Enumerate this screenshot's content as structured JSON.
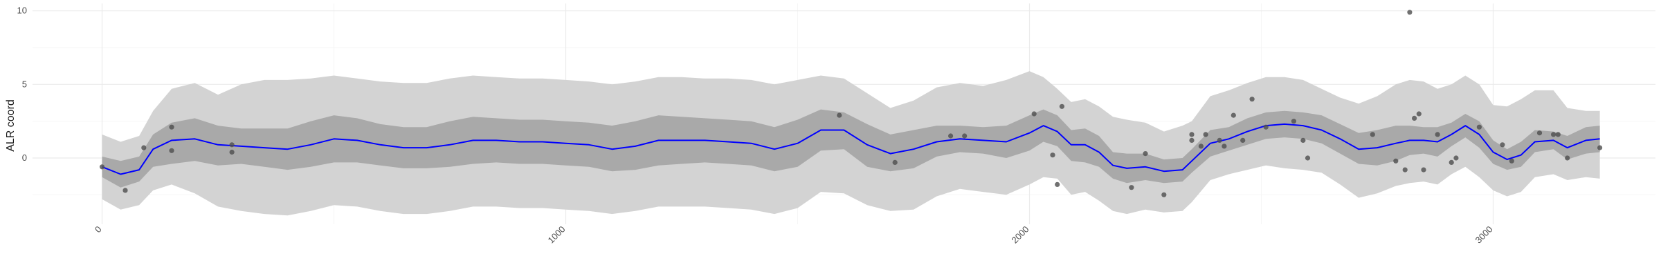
{
  "chart_data": {
    "type": "line",
    "title": "",
    "xlabel": "",
    "ylabel": "ALR coord",
    "xlim": [
      -150,
      3350
    ],
    "ylim": [
      -4.5,
      10.5
    ],
    "grid": true,
    "legend": "none",
    "x_ticks": [
      0,
      1000,
      2000,
      3000
    ],
    "y_ticks": [
      0,
      5,
      10
    ],
    "colors": {
      "line": "#0000ff",
      "inner_band": "#a9a9a9",
      "outer_band": "#d3d3d3",
      "points": "#4d4d4d",
      "grid_major": "#ebebeb",
      "grid_minor": "#f5f5f5"
    },
    "mean_curve": {
      "x": [
        0,
        40,
        80,
        110,
        150,
        200,
        250,
        300,
        350,
        400,
        450,
        500,
        550,
        600,
        650,
        700,
        750,
        800,
        850,
        900,
        950,
        1000,
        1050,
        1100,
        1150,
        1200,
        1250,
        1300,
        1350,
        1400,
        1450,
        1500,
        1550,
        1600,
        1650,
        1700,
        1750,
        1800,
        1850,
        1900,
        1950,
        2000,
        2030,
        2060,
        2090,
        2120,
        2150,
        2180,
        2210,
        2250,
        2290,
        2330,
        2350,
        2390,
        2430,
        2470,
        2510,
        2550,
        2590,
        2630,
        2670,
        2710,
        2750,
        2790,
        2820,
        2850,
        2880,
        2910,
        2940,
        2970,
        3000,
        3030,
        3060,
        3090,
        3130,
        3160,
        3200,
        3230
      ],
      "y": [
        -0.6,
        -1.1,
        -0.8,
        0.6,
        1.2,
        1.3,
        0.9,
        0.8,
        0.7,
        0.6,
        0.9,
        1.3,
        1.2,
        0.9,
        0.7,
        0.7,
        0.9,
        1.2,
        1.2,
        1.1,
        1.1,
        1.0,
        0.9,
        0.6,
        0.8,
        1.2,
        1.2,
        1.2,
        1.1,
        1.0,
        0.6,
        1.0,
        1.9,
        1.9,
        0.9,
        0.3,
        0.6,
        1.1,
        1.3,
        1.2,
        1.1,
        1.7,
        2.2,
        1.8,
        0.9,
        0.9,
        0.4,
        -0.5,
        -0.7,
        -0.6,
        -0.9,
        -0.8,
        -0.2,
        1.0,
        1.3,
        1.8,
        2.2,
        2.3,
        2.2,
        1.9,
        1.3,
        0.6,
        0.7,
        1.0,
        1.2,
        1.2,
        1.1,
        1.6,
        2.2,
        1.6,
        0.4,
        -0.1,
        0.2,
        1.1,
        1.2,
        0.7,
        1.2,
        1.3
      ]
    },
    "inner_band": {
      "x": [
        0,
        40,
        80,
        110,
        150,
        200,
        250,
        300,
        350,
        400,
        450,
        500,
        550,
        600,
        650,
        700,
        750,
        800,
        850,
        900,
        950,
        1000,
        1050,
        1100,
        1150,
        1200,
        1250,
        1300,
        1350,
        1400,
        1450,
        1500,
        1550,
        1600,
        1650,
        1700,
        1750,
        1800,
        1850,
        1900,
        1950,
        2000,
        2030,
        2060,
        2090,
        2120,
        2150,
        2180,
        2210,
        2250,
        2290,
        2330,
        2350,
        2390,
        2430,
        2470,
        2510,
        2550,
        2590,
        2630,
        2670,
        2710,
        2750,
        2790,
        2820,
        2850,
        2880,
        2910,
        2940,
        2970,
        3000,
        3030,
        3060,
        3090,
        3130,
        3160,
        3200,
        3230
      ],
      "lower": [
        -1.3,
        -2.0,
        -1.6,
        -0.6,
        -0.4,
        -0.2,
        -0.5,
        -0.4,
        -0.6,
        -0.8,
        -0.6,
        -0.3,
        -0.3,
        -0.5,
        -0.7,
        -0.7,
        -0.6,
        -0.4,
        -0.3,
        -0.4,
        -0.4,
        -0.5,
        -0.6,
        -0.9,
        -0.8,
        -0.5,
        -0.4,
        -0.3,
        -0.4,
        -0.5,
        -0.9,
        -0.6,
        0.5,
        0.6,
        -0.6,
        -0.9,
        -0.7,
        0.1,
        0.4,
        0.3,
        0.0,
        0.5,
        1.1,
        0.8,
        -0.2,
        -0.3,
        -0.6,
        -1.4,
        -1.7,
        -1.5,
        -1.7,
        -1.6,
        -1.0,
        0.1,
        0.5,
        0.9,
        1.3,
        1.4,
        1.3,
        1.0,
        0.3,
        -0.4,
        -0.5,
        -0.2,
        0.2,
        0.3,
        0.1,
        0.8,
        1.4,
        0.7,
        -0.4,
        -0.8,
        -0.6,
        0.4,
        0.6,
        -0.1,
        0.3,
        0.4
      ],
      "upper": [
        0.1,
        -0.2,
        0.1,
        1.6,
        2.4,
        2.7,
        2.2,
        2.0,
        2.0,
        2.0,
        2.5,
        2.9,
        2.7,
        2.3,
        2.1,
        2.1,
        2.5,
        2.8,
        2.7,
        2.6,
        2.6,
        2.5,
        2.4,
        2.2,
        2.5,
        2.9,
        2.8,
        2.7,
        2.6,
        2.5,
        2.1,
        2.6,
        3.3,
        3.1,
        2.3,
        1.6,
        1.9,
        2.2,
        2.2,
        2.1,
        2.2,
        2.9,
        3.3,
        2.9,
        1.9,
        2.0,
        1.5,
        0.4,
        0.3,
        0.3,
        -0.1,
        0.0,
        0.6,
        1.9,
        2.1,
        2.7,
        3.1,
        3.2,
        3.1,
        2.9,
        2.3,
        1.7,
        1.9,
        2.2,
        2.2,
        2.1,
        2.1,
        2.4,
        3.0,
        2.5,
        1.2,
        0.6,
        1.1,
        1.9,
        1.8,
        1.5,
        2.1,
        2.2
      ]
    },
    "outer_band": {
      "x": [
        0,
        40,
        80,
        110,
        150,
        200,
        250,
        300,
        350,
        400,
        450,
        500,
        550,
        600,
        650,
        700,
        750,
        800,
        850,
        900,
        950,
        1000,
        1050,
        1100,
        1150,
        1200,
        1250,
        1300,
        1350,
        1400,
        1450,
        1500,
        1550,
        1600,
        1650,
        1700,
        1750,
        1800,
        1850,
        1900,
        1950,
        2000,
        2030,
        2060,
        2090,
        2120,
        2150,
        2180,
        2210,
        2250,
        2290,
        2330,
        2350,
        2390,
        2430,
        2470,
        2510,
        2550,
        2590,
        2630,
        2670,
        2710,
        2750,
        2790,
        2820,
        2850,
        2880,
        2910,
        2940,
        2970,
        3000,
        3030,
        3060,
        3090,
        3130,
        3160,
        3200,
        3230
      ],
      "lower": [
        -2.8,
        -3.5,
        -3.2,
        -2.2,
        -1.8,
        -2.4,
        -3.3,
        -3.6,
        -3.8,
        -3.9,
        -3.6,
        -3.2,
        -3.3,
        -3.6,
        -3.8,
        -3.8,
        -3.6,
        -3.3,
        -3.3,
        -3.4,
        -3.4,
        -3.5,
        -3.6,
        -3.8,
        -3.6,
        -3.3,
        -3.3,
        -3.3,
        -3.4,
        -3.5,
        -3.8,
        -3.4,
        -2.3,
        -2.4,
        -3.2,
        -3.6,
        -3.5,
        -2.6,
        -2.1,
        -2.3,
        -2.5,
        -1.8,
        -1.3,
        -1.4,
        -2.5,
        -2.3,
        -2.9,
        -3.6,
        -3.8,
        -3.5,
        -3.7,
        -3.6,
        -3.0,
        -1.5,
        -1.1,
        -0.8,
        -0.5,
        -0.7,
        -0.8,
        -1.0,
        -1.8,
        -2.7,
        -2.4,
        -1.9,
        -1.7,
        -1.6,
        -1.8,
        -1.1,
        -0.6,
        -1.3,
        -2.2,
        -2.6,
        -2.3,
        -1.3,
        -1.1,
        -1.5,
        -1.3,
        -1.4
      ],
      "upper": [
        1.6,
        1.1,
        1.5,
        3.2,
        4.7,
        5.1,
        4.3,
        5.0,
        5.3,
        5.3,
        5.4,
        5.6,
        5.4,
        5.2,
        5.1,
        5.1,
        5.4,
        5.6,
        5.5,
        5.4,
        5.4,
        5.3,
        5.2,
        5.0,
        5.2,
        5.5,
        5.5,
        5.4,
        5.4,
        5.3,
        5.0,
        5.3,
        5.6,
        5.4,
        4.4,
        3.4,
        3.9,
        4.8,
        5.1,
        4.9,
        5.3,
        5.9,
        5.5,
        4.7,
        3.8,
        4.0,
        3.5,
        2.8,
        2.6,
        2.4,
        1.8,
        2.2,
        2.5,
        4.2,
        4.6,
        5.1,
        5.5,
        5.5,
        5.3,
        4.7,
        4.1,
        3.7,
        4.2,
        5.0,
        5.3,
        5.2,
        4.7,
        5.0,
        5.6,
        5.0,
        3.6,
        3.5,
        4.0,
        4.6,
        4.6,
        3.4,
        3.2,
        3.2
      ]
    },
    "points": {
      "x": [
        0,
        50,
        90,
        150,
        150,
        280,
        280,
        1590,
        1710,
        1830,
        1860,
        2010,
        2050,
        2060,
        2070,
        2220,
        2250,
        2290,
        2350,
        2350,
        2370,
        2380,
        2410,
        2420,
        2440,
        2460,
        2480,
        2510,
        2570,
        2590,
        2600,
        2740,
        2790,
        2810,
        2820,
        2830,
        2840,
        2850,
        2880,
        2910,
        2920,
        2970,
        3020,
        3040,
        3100,
        3130,
        3140,
        3160,
        3230
      ],
      "y": [
        -0.6,
        -2.2,
        0.7,
        2.1,
        0.5,
        0.9,
        0.4,
        2.9,
        -0.3,
        1.5,
        1.5,
        3.0,
        0.2,
        -1.8,
        3.5,
        -2.0,
        0.3,
        -2.5,
        1.2,
        1.6,
        0.8,
        1.6,
        1.2,
        0.8,
        2.9,
        1.2,
        4.0,
        2.1,
        2.5,
        1.2,
        0.0,
        1.6,
        -0.2,
        -0.8,
        9.9,
        2.7,
        3.0,
        -0.8,
        1.6,
        -0.3,
        0.0,
        2.1,
        0.9,
        -0.2,
        1.7,
        1.6,
        1.6,
        0.0,
        0.7
      ]
    }
  }
}
